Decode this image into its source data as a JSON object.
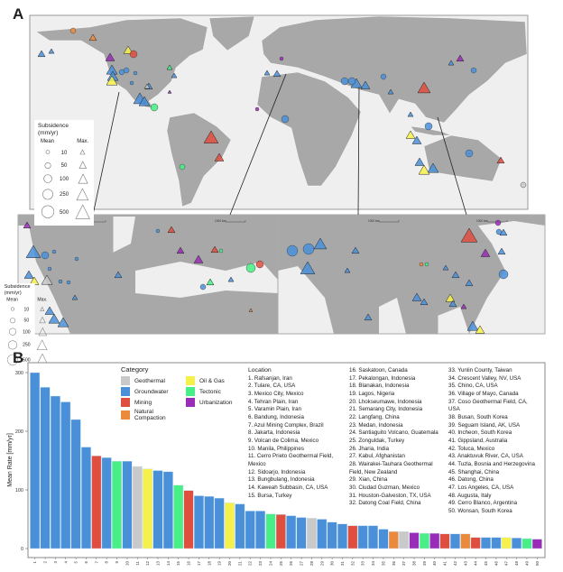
{
  "panel_a": {
    "label": "A",
    "legend": {
      "title": "Subsidence",
      "unit": "(mm/yr)",
      "mean_label": "Mean",
      "max_label": "Max.",
      "values": [
        "10",
        "50",
        "100",
        "250",
        "500"
      ]
    },
    "scale_bars": [
      "500 km",
      "1000 km",
      "1000 km",
      "1000 km"
    ],
    "colors": {
      "land": "#a8a8a8",
      "ocean": "#efefef"
    }
  },
  "panel_b": {
    "label": "B"
  },
  "chart_data": {
    "type": "bar",
    "ylabel": "Mean Rate [mm/yr]",
    "ylim": [
      0,
      310
    ],
    "yticks": [
      0,
      100,
      200,
      300
    ],
    "categories": [
      "1",
      "2",
      "3",
      "4",
      "5",
      "6",
      "7",
      "8",
      "9",
      "10",
      "11",
      "12",
      "13",
      "14",
      "15",
      "16",
      "17",
      "18",
      "19",
      "20",
      "21",
      "22",
      "23",
      "24",
      "25",
      "26",
      "27",
      "28",
      "29",
      "30",
      "31",
      "32",
      "33",
      "34",
      "35",
      "36",
      "37",
      "38",
      "39",
      "40",
      "41",
      "42",
      "43",
      "44",
      "45",
      "46",
      "47",
      "48",
      "49",
      "50"
    ],
    "values": [
      300,
      275,
      260,
      250,
      220,
      173,
      158,
      155,
      149,
      149,
      140,
      136,
      133,
      131,
      108,
      99,
      90,
      89,
      86,
      78,
      76,
      64,
      64,
      59,
      58,
      56,
      53,
      52,
      50,
      45,
      42,
      39,
      39,
      39,
      33,
      29,
      29,
      27,
      26,
      26,
      25,
      25,
      25,
      19,
      19,
      19,
      19,
      18,
      17,
      16
    ],
    "bar_category": [
      "Groundwater",
      "Groundwater",
      "Groundwater",
      "Groundwater",
      "Groundwater",
      "Groundwater",
      "Mining",
      "Groundwater",
      "Tectonic",
      "Groundwater",
      "Geothermal",
      "Oil & Gas",
      "Groundwater",
      "Groundwater",
      "Tectonic",
      "Mining",
      "Groundwater",
      "Groundwater",
      "Groundwater",
      "Oil & Gas",
      "Groundwater",
      "Groundwater",
      "Groundwater",
      "Tectonic",
      "Mining",
      "Groundwater",
      "Groundwater",
      "Geothermal",
      "Groundwater",
      "Groundwater",
      "Groundwater",
      "Mining",
      "Groundwater",
      "Groundwater",
      "Groundwater",
      "Natural Compaction",
      "Geothermal",
      "Urbanization",
      "Tectonic",
      "Urbanization",
      "Mining",
      "Groundwater",
      "Natural Compaction",
      "Mining",
      "Groundwater",
      "Groundwater",
      "Oil & Gas",
      "Groundwater",
      "Tectonic",
      "Urbanization"
    ],
    "legend": {
      "title": "Category",
      "placement": "top-center",
      "entries": [
        {
          "name": "Geothermal",
          "color": "#c8c9c8"
        },
        {
          "name": "Oil & Gas",
          "color": "#f6f14a"
        },
        {
          "name": "Groundwater",
          "color": "#4a90d9"
        },
        {
          "name": "Tectonic",
          "color": "#48ee86"
        },
        {
          "name": "Mining",
          "color": "#df4f40"
        },
        {
          "name": "Urbanization",
          "color": "#9a2db8"
        },
        {
          "name": "Natural Compaction",
          "color": "#ec8a3c"
        }
      ]
    },
    "location_title": "Location",
    "locations": [
      "1. Rafsanjan, Iran",
      "2. Tulare, CA, USA",
      "3. Mexico City, Mexico",
      "4. Tehran Plain, Iran",
      "5. Varamin Plain, Iran",
      "6. Bandung, Indonesia",
      "7. Azul Mining Complex, Brazil",
      "8. Jakarta, Indonesia",
      "9. Volcan de Colima, Mexico",
      "10. Manila, Philippines",
      "11. Cerro Prieto Geothermal Field, Mexico",
      "12. Sidoarjo, Indonesia",
      "13. Bungbulang, Indonesia",
      "14. Kaweah Subbasin, CA, USA",
      "15. Bursa, Turkey",
      "16. Saskatoon, Canada",
      "17. Pekalongan, Indonesia",
      "18. Blanakan, Indonesia",
      "19. Lagos, Nigeria",
      "20. Lhokseumawe, Indonesia",
      "21. Semarang City, Indonesia",
      "22. Langfang, China",
      "23. Medan, Indonesia",
      "24. Santiaguito Volcano, Guatemala",
      "25. Zonguldak, Turkey",
      "26. Jharia, India",
      "27. Kabul, Afghanistan",
      "28. Wairakei-Tauhara Geothermal Field, New Zealand",
      "29. Xian, China",
      "30. Ciudad Guzman, Mexico",
      "31. Houston-Galveston, TX, USA",
      "32. Datong Coal Field, China",
      "33. Yunlin County, Taiwan",
      "34. Crescent Valley, NV, USA",
      "35. Chino, CA, USA",
      "36. Village of Mayo, Canada",
      "37. Coso Geothermal Field, CA, USA",
      "38. Busan, South Korea",
      "39. Seguam Island, AK, USA",
      "40. Incheon, South Korea",
      "41. Gippsland, Australia",
      "42. Toluca, Mexico",
      "43. Anaktuvuk River, CA, USA",
      "44. Tuzla, Bosnia and Herzegovina",
      "45. Shanghai, China",
      "46. Datong, China",
      "47. Los Angeles, CA, USA",
      "48. Augusta, Italy",
      "49. Cerro Blanco, Argentina",
      "50. Wonsan, South Korea"
    ]
  }
}
